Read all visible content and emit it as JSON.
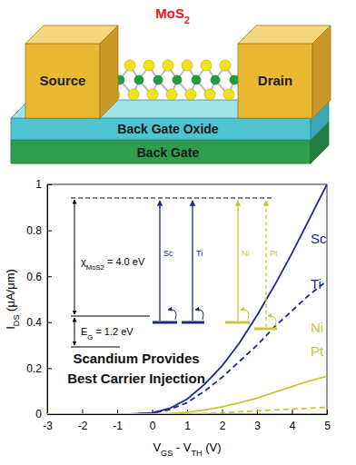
{
  "device": {
    "molecule": [
      {
        "text": "MoS"
      },
      {
        "text": "2",
        "sub": true
      }
    ],
    "source": "Source",
    "drain": "Drain",
    "oxide": "Back Gate Oxide",
    "gate": "Back Gate"
  },
  "chart_data": {
    "type": "line",
    "xlabel": [
      {
        "text": "V"
      },
      {
        "text": "GS",
        "sub": true
      },
      {
        "text": " - V"
      },
      {
        "text": "TH",
        "sub": true
      },
      {
        "text": " (V)"
      }
    ],
    "ylabel": [
      {
        "text": "I"
      },
      {
        "text": "DS",
        "sub": true
      },
      {
        "text": " (μA/μm)"
      }
    ],
    "x": [
      -3,
      -2,
      -1,
      -0.5,
      0,
      0.5,
      1,
      1.5,
      2,
      2.5,
      3,
      3.5,
      4,
      4.5,
      5
    ],
    "series": [
      {
        "name": "Sc",
        "color": "#1c2a87",
        "line_style": "solid",
        "values": [
          0,
          0,
          0,
          0.001,
          0.005,
          0.025,
          0.065,
          0.13,
          0.21,
          0.31,
          0.43,
          0.56,
          0.7,
          0.85,
          1.0
        ]
      },
      {
        "name": "Ti",
        "color": "#1c2a87",
        "line_style": "dashed",
        "values": [
          0,
          0,
          0,
          0.001,
          0.004,
          0.02,
          0.05,
          0.1,
          0.16,
          0.23,
          0.3,
          0.38,
          0.45,
          0.52,
          0.58
        ]
      },
      {
        "name": "Ni",
        "color": "#c9c43a",
        "line_style": "solid",
        "values": [
          0,
          0,
          0,
          0,
          0,
          0.002,
          0.008,
          0.018,
          0.032,
          0.05,
          0.07,
          0.095,
          0.12,
          0.145,
          0.165
        ]
      },
      {
        "name": "Pt",
        "color": "#c9c43a",
        "line_style": "dashed",
        "values": [
          0,
          0,
          0,
          0,
          0,
          0,
          0.001,
          0.003,
          0.006,
          0.01,
          0.014,
          0.018,
          0.022,
          0.026,
          0.03
        ]
      }
    ],
    "xlim": [
      -3,
      5
    ],
    "ylim": [
      0,
      1
    ],
    "xticks": [
      -3,
      -2,
      -1,
      0,
      1,
      2,
      3,
      4,
      5
    ],
    "yticks": [
      0,
      0.2,
      0.4,
      0.6,
      0.8,
      1
    ],
    "annotations": [
      "Scandium Provides",
      "Best Carrier Injection"
    ],
    "inset": {
      "affinity": [
        {
          "text": "χ"
        },
        {
          "text": "MoS2",
          "sub": true
        },
        {
          "text": " = 4.0 eV"
        }
      ],
      "gap": [
        {
          "text": "E"
        },
        {
          "text": "G",
          "sub": true
        },
        {
          "text": " = 1.2 eV"
        }
      ],
      "metals": [
        "Sc",
        "Ti",
        "Ni",
        "Pt"
      ]
    }
  }
}
